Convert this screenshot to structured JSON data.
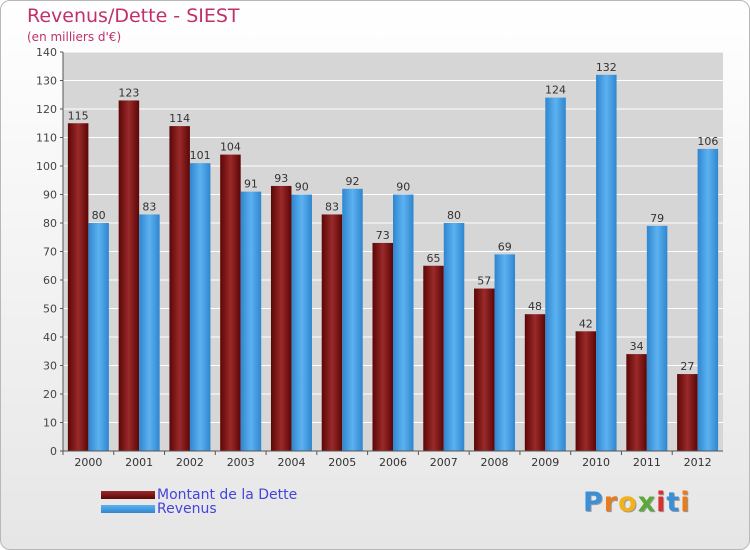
{
  "header": {
    "title": "Revenus/Dette - SIEST",
    "subtitle": "(en milliers d'€)"
  },
  "legend": {
    "dette_label": "Montant de la Dette",
    "revenus_label": "Revenus"
  },
  "logo": {
    "letters": [
      "P",
      "r",
      "o",
      "x",
      "i",
      "t",
      "i"
    ],
    "colors": [
      "#3a8fd6",
      "#e87b1e",
      "#f2b21b",
      "#5aa93a",
      "#d9302f",
      "#3a8fd6",
      "#e87b1e"
    ]
  },
  "colors": {
    "dette": "#7a1010",
    "revenus": "#3b98dd",
    "grid": "#ffffff",
    "plot_bg": "#d6d6d6"
  },
  "chart_data": {
    "type": "bar",
    "categories": [
      "2000",
      "2001",
      "2002",
      "2003",
      "2004",
      "2005",
      "2006",
      "2007",
      "2008",
      "2009",
      "2010",
      "2011",
      "2012"
    ],
    "series": [
      {
        "name": "Montant de la Dette",
        "values": [
          115,
          123,
          114,
          104,
          93,
          83,
          73,
          65,
          57,
          48,
          42,
          34,
          27
        ]
      },
      {
        "name": "Revenus",
        "values": [
          80,
          83,
          101,
          91,
          90,
          92,
          90,
          80,
          69,
          124,
          132,
          79,
          106
        ]
      }
    ],
    "title": "Revenus/Dette - SIEST",
    "subtitle": "(en milliers d'€)",
    "ylim": [
      0,
      140
    ],
    "yticks": [
      0,
      10,
      20,
      30,
      40,
      50,
      60,
      70,
      80,
      90,
      100,
      110,
      120,
      130,
      140
    ],
    "grid": true,
    "legend_position": "bottom-left"
  }
}
